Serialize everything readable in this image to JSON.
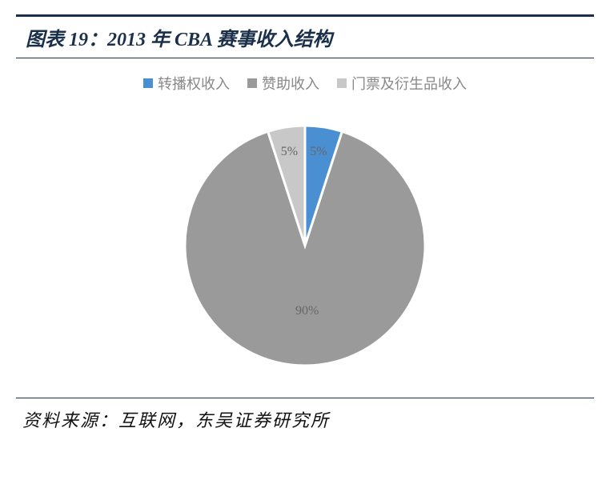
{
  "header": {
    "title": "图表 19：2013 年 CBA 赛事收入结构"
  },
  "chart": {
    "type": "pie",
    "background_color": "#ffffff",
    "radius": 150,
    "center_gap_color": "#ffffff",
    "slice_border_color": "#ffffff",
    "slice_border_width": 3,
    "start_angle": -90,
    "label_fontsize": 16,
    "label_color": "#666666",
    "legend_fontsize": 18,
    "legend_color": "#888888",
    "slices": [
      {
        "name": "转播权收入",
        "value": 5,
        "label": "5%",
        "color": "#4a8fd1"
      },
      {
        "name": "赞助收入",
        "value": 90,
        "label": "90%",
        "color": "#9a9a9a"
      },
      {
        "name": "门票及衍生品收入",
        "value": 5,
        "label": "5%",
        "color": "#c8c8c8"
      }
    ]
  },
  "footer": {
    "source": "资料来源：互联网，东吴证券研究所"
  },
  "colors": {
    "rule": "#1a2f4a",
    "title": "#1a2f4a"
  }
}
